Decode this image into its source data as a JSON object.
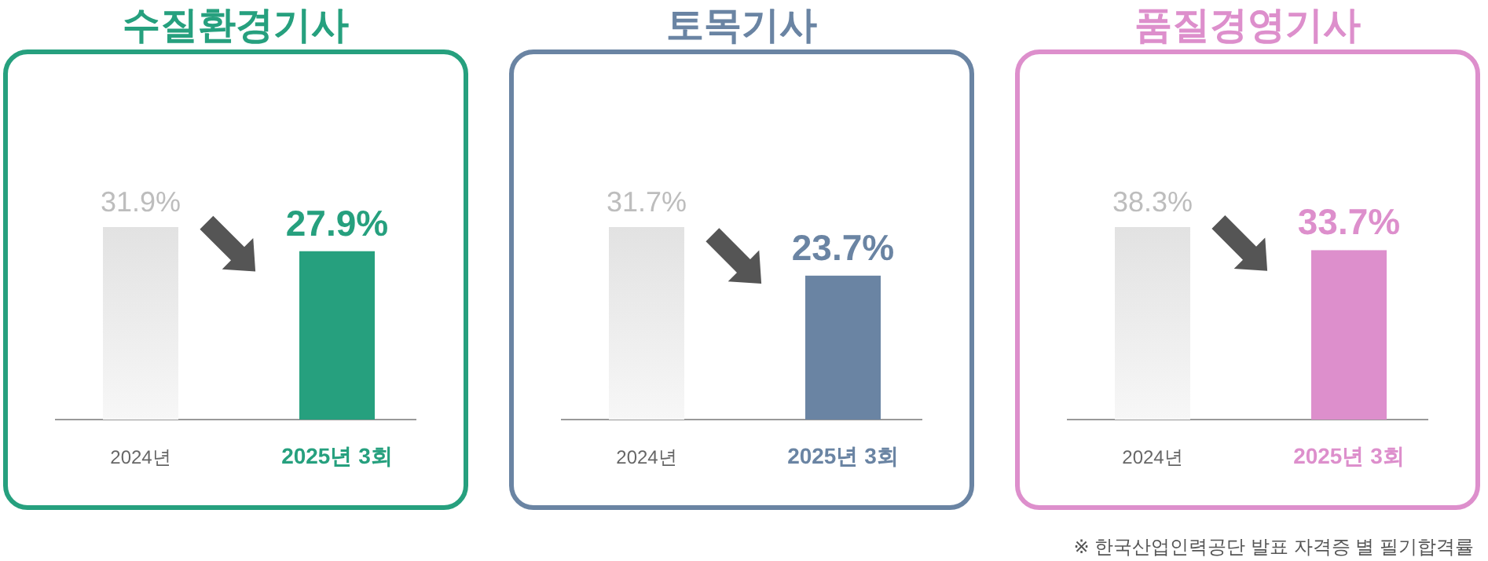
{
  "chart_data": [
    {
      "type": "bar",
      "title": "수질환경기사",
      "categories": [
        "2024년",
        "2025년 3회"
      ],
      "values": [
        31.9,
        27.9
      ],
      "value_labels": [
        "31.9%",
        "27.9%"
      ],
      "colors": [
        "#e2e2e2",
        "#26a07e"
      ]
    },
    {
      "type": "bar",
      "title": "토목기사",
      "categories": [
        "2024년",
        "2025년 3회"
      ],
      "values": [
        31.7,
        23.7
      ],
      "value_labels": [
        "31.7%",
        "23.7%"
      ],
      "colors": [
        "#e2e2e2",
        "#6a84a3"
      ]
    },
    {
      "type": "bar",
      "title": "품질경영기사",
      "categories": [
        "2024년",
        "2025년 3회"
      ],
      "values": [
        38.3,
        33.7
      ],
      "value_labels": [
        "38.3%",
        "33.7%"
      ],
      "colors": [
        "#e2e2e2",
        "#dd8fcc"
      ],
      "annotations": [
        "※ 한국산업인력공단 발표 자격증 별 필기합격률"
      ]
    }
  ]
}
